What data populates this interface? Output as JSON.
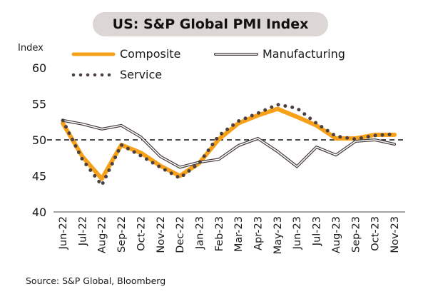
{
  "chart_data": {
    "type": "line",
    "title": "US: S&P Global PMI Index",
    "ylabel": "Index",
    "xlabel": "",
    "ylim": [
      40,
      60
    ],
    "yticks": [
      40,
      45,
      50,
      55,
      60
    ],
    "reference_line": 50,
    "grid": false,
    "legend_position": "top",
    "categories": [
      "Jun-22",
      "Jul-22",
      "Aug-22",
      "Sep-22",
      "Oct-22",
      "Nov-22",
      "Dec-22",
      "Jan-23",
      "Feb-23",
      "Mar-23",
      "Apr-23",
      "May-23",
      "Jun-23",
      "Jul-23",
      "Aug-23",
      "Sep-23",
      "Oct-23",
      "Nov-23"
    ],
    "series": [
      {
        "name": "Composite",
        "style": "solid-thick",
        "color": "#f7a11a",
        "values": [
          52.3,
          47.7,
          44.6,
          49.3,
          48.2,
          46.4,
          45.0,
          46.8,
          50.1,
          52.3,
          53.4,
          54.3,
          53.2,
          52.0,
          50.2,
          50.2,
          50.7,
          50.7
        ]
      },
      {
        "name": "Manufacturing",
        "style": "double-line",
        "color": "#4a4040",
        "values": [
          52.7,
          52.2,
          51.5,
          52.0,
          50.4,
          47.7,
          46.2,
          46.9,
          47.3,
          49.2,
          50.2,
          48.4,
          46.3,
          49.0,
          47.9,
          49.8,
          50.0,
          49.4
        ]
      },
      {
        "name": "Service",
        "style": "dotted",
        "color": "#4a4040",
        "values": [
          52.7,
          47.3,
          43.7,
          49.3,
          47.8,
          46.2,
          44.7,
          46.8,
          50.6,
          52.6,
          53.7,
          54.9,
          54.4,
          52.3,
          50.5,
          50.1,
          50.6,
          50.8
        ]
      }
    ],
    "source": "Source: S&P Global, Bloomberg"
  }
}
